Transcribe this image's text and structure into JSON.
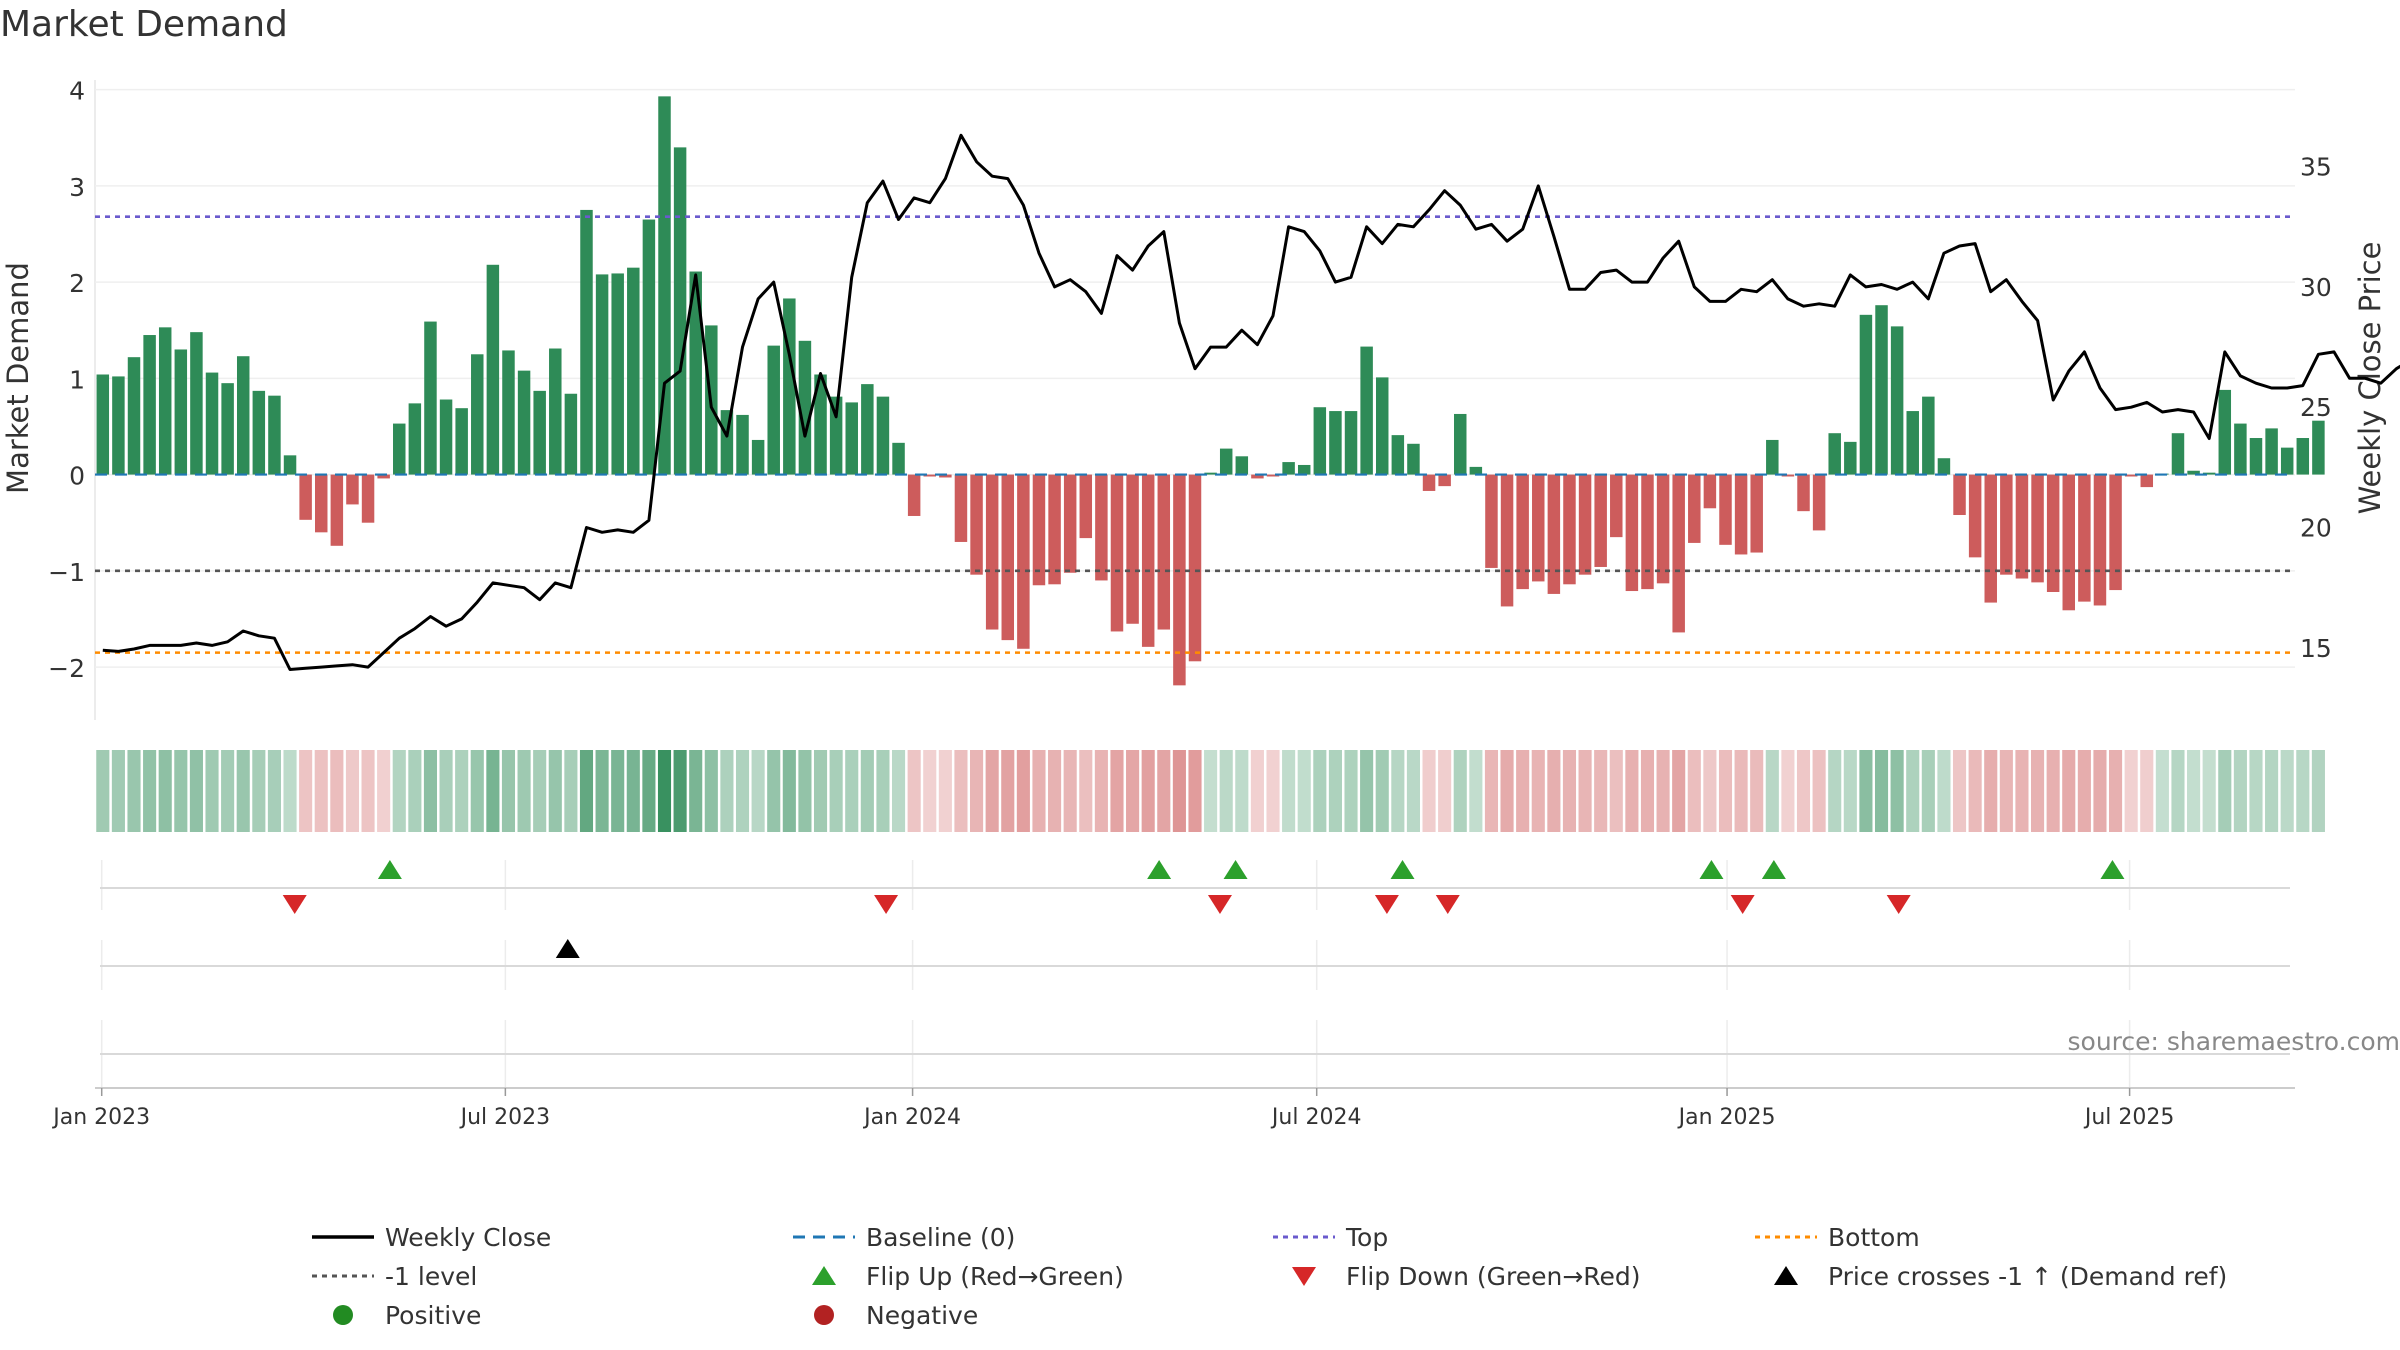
{
  "colors": {
    "positive": "#2e8b57",
    "negative": "#cd5c5c",
    "price": "#000000",
    "baseline": "#1f77b4",
    "top": "#6a5acd",
    "minus1": "#555555",
    "bottom": "#ff8c00",
    "flip_up": "#2ca02c",
    "flip_down": "#d62728",
    "cross": "#000000",
    "legend_positive": "#228b22",
    "legend_negative": "#b22222"
  },
  "chart_data": {
    "type": "bar",
    "title": "Market Demand",
    "ylabel": "Market Demand",
    "y2label": "Weekly Close Price",
    "ylim": [
      -2.55,
      4.1
    ],
    "y2lim": [
      12.0,
      38.6
    ],
    "yticks": [
      4,
      3,
      2,
      1,
      0,
      -1,
      -2
    ],
    "ytick_labels": [
      "4",
      "3",
      "2",
      "1",
      "0",
      "−1",
      "−2"
    ],
    "y2ticks": [
      35,
      30,
      25,
      20,
      15
    ],
    "y2tick_labels": [
      "35",
      "30",
      "25",
      "20",
      "15"
    ],
    "x_start": "2022-12-29",
    "weeks": 141,
    "xticks": [
      {
        "label": "Jan 2023",
        "week": 0.43
      },
      {
        "label": "Jul 2023",
        "week": 26.3
      },
      {
        "label": "Jan 2024",
        "week": 52.4
      },
      {
        "label": "Jul 2024",
        "week": 78.3
      },
      {
        "label": "Jan 2025",
        "week": 104.6
      },
      {
        "label": "Jul 2025",
        "week": 130.4
      }
    ],
    "levels": {
      "top": 2.68,
      "minus1": -1.0,
      "bottom": -1.85,
      "baseline": 0
    },
    "demand": [
      1.04,
      1.02,
      1.22,
      1.45,
      1.53,
      1.3,
      1.48,
      1.06,
      0.95,
      1.23,
      0.87,
      0.82,
      0.2,
      -0.47,
      -0.6,
      -0.74,
      -0.31,
      -0.5,
      -0.04,
      0.53,
      0.74,
      1.59,
      0.78,
      0.69,
      1.25,
      2.18,
      1.29,
      1.08,
      0.87,
      1.31,
      0.84,
      2.75,
      2.08,
      2.09,
      2.15,
      2.65,
      3.93,
      3.4,
      2.11,
      1.55,
      0.67,
      0.62,
      0.36,
      1.34,
      1.83,
      1.39,
      1.04,
      0.81,
      0.75,
      0.94,
      0.81,
      0.33,
      -0.43,
      -0.02,
      -0.03,
      -0.7,
      -1.04,
      -1.61,
      -1.72,
      -1.81,
      -1.15,
      -1.14,
      -1.02,
      -0.66,
      -1.1,
      -1.63,
      -1.55,
      -1.79,
      -1.61,
      -2.19,
      -1.94,
      0.02,
      0.27,
      0.19,
      -0.04,
      -0.02,
      0.13,
      0.1,
      0.7,
      0.66,
      0.66,
      1.33,
      1.01,
      0.41,
      0.32,
      -0.17,
      -0.12,
      0.63,
      0.08,
      -0.97,
      -1.37,
      -1.19,
      -1.11,
      -1.24,
      -1.14,
      -1.04,
      -0.96,
      -0.65,
      -1.21,
      -1.19,
      -1.13,
      -1.64,
      -0.71,
      -0.35,
      -0.73,
      -0.83,
      -0.81,
      0.36,
      -0.02,
      -0.38,
      -0.58,
      0.43,
      0.34,
      1.66,
      1.76,
      1.54,
      0.66,
      0.81,
      0.17,
      -0.42,
      -0.86,
      -1.33,
      -1.04,
      -1.08,
      -1.12,
      -1.22,
      -1.41,
      -1.32,
      -1.36,
      -1.2,
      -0.02,
      -0.13,
      0.01,
      0.43,
      0.04,
      0.02,
      0.88,
      0.53,
      0.38,
      0.48,
      0.28,
      0.38,
      0.56
    ],
    "price": [
      14.9,
      14.85,
      14.95,
      15.1,
      15.1,
      15.1,
      15.2,
      15.1,
      15.25,
      15.7,
      15.5,
      15.4,
      14.1,
      14.15,
      14.2,
      14.25,
      14.3,
      14.2,
      14.8,
      15.4,
      15.8,
      16.3,
      15.9,
      16.2,
      16.9,
      17.7,
      17.6,
      17.5,
      17.0,
      17.7,
      17.5,
      20.0,
      19.8,
      19.9,
      19.8,
      20.3,
      26.0,
      26.5,
      30.5,
      25.0,
      23.8,
      27.5,
      29.5,
      30.2,
      27.2,
      23.8,
      26.4,
      24.6,
      30.4,
      33.5,
      34.4,
      32.8,
      33.7,
      33.5,
      34.5,
      36.3,
      35.2,
      34.6,
      34.5,
      33.4,
      31.4,
      30.0,
      30.3,
      29.8,
      28.9,
      31.3,
      30.7,
      31.7,
      32.3,
      28.5,
      26.6,
      27.5,
      27.5,
      28.2,
      27.6,
      28.8,
      32.5,
      32.3,
      31.5,
      30.2,
      30.4,
      32.5,
      31.8,
      32.6,
      32.5,
      33.2,
      34.0,
      33.4,
      32.4,
      32.6,
      31.9,
      32.4,
      34.2,
      32.1,
      29.9,
      29.9,
      30.6,
      30.7,
      30.2,
      30.2,
      31.2,
      31.9,
      30.0,
      29.4,
      29.4,
      29.9,
      29.8,
      30.3,
      29.5,
      29.2,
      29.3,
      29.2,
      30.5,
      30.0,
      30.1,
      29.9,
      30.2,
      29.5,
      31.4,
      31.7,
      31.8,
      29.8,
      30.3,
      29.4,
      28.6,
      25.3,
      26.5,
      27.3,
      25.8,
      24.9,
      25.0,
      25.2,
      24.8,
      24.9,
      24.8,
      23.7,
      27.3,
      26.3,
      26.0,
      25.8,
      25.8,
      25.9,
      27.2,
      27.3,
      26.2,
      26.2,
      26.0,
      26.6,
      27.0
    ],
    "flip_up_weeks": [
      18.9,
      68.2,
      73.1,
      83.8,
      103.6,
      107.6,
      129.3
    ],
    "flip_down_weeks": [
      12.8,
      50.7,
      72.1,
      82.8,
      86.7,
      105.6,
      115.6
    ],
    "cross_weeks": [
      30.3
    ],
    "source": "source: sharemaestro.com"
  },
  "legend": [
    {
      "label": "Weekly Close",
      "symbol": "line-solid",
      "color": "#000000"
    },
    {
      "label": "Baseline (0)",
      "symbol": "line-dash",
      "color": "#1f77b4"
    },
    {
      "label": "Top",
      "symbol": "line-dot",
      "color": "#6a5acd"
    },
    {
      "label": "Bottom",
      "symbol": "line-dot",
      "color": "#ff8c00"
    },
    {
      "label": "-1 level",
      "symbol": "line-dot",
      "color": "#555555"
    },
    {
      "label": "Flip Up (Red→Green)",
      "symbol": "triangle-up",
      "color": "#2ca02c"
    },
    {
      "label": "Flip Down (Green→Red)",
      "symbol": "triangle-down",
      "color": "#d62728"
    },
    {
      "label": "Price crosses -1 ↑ (Demand ref)",
      "symbol": "triangle-up",
      "color": "#000000"
    },
    {
      "label": "Positive",
      "symbol": "circle",
      "color": "#228b22"
    },
    {
      "label": "Negative",
      "symbol": "circle",
      "color": "#b22222"
    }
  ]
}
